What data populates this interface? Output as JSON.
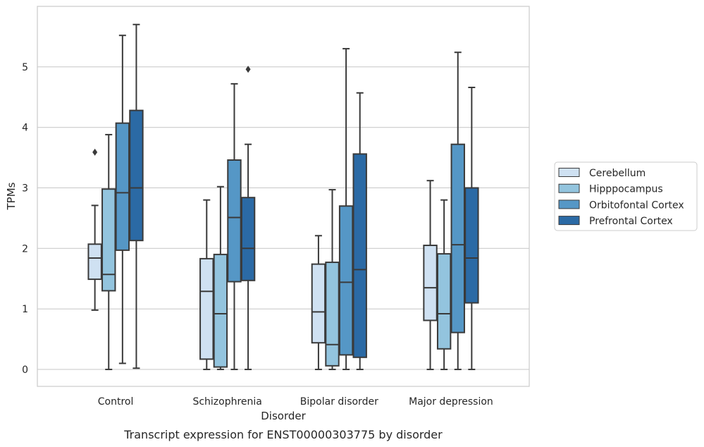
{
  "chart_data": {
    "type": "box",
    "title": "",
    "caption": "Transcript expression for ENST00000303775 by disorder",
    "xlabel": "Disorder",
    "ylabel": "TPMs",
    "ylim": [
      -0.28,
      6.0
    ],
    "yticks": [
      0,
      1,
      2,
      3,
      4,
      5
    ],
    "grid": "horizontal",
    "legend_position": "right",
    "categories": [
      "Control",
      "Schizophrenia",
      "Bipolar disorder",
      "Major depression"
    ],
    "series": [
      {
        "name": "Cerebellum",
        "color": "#cfe1f2",
        "boxes": [
          {
            "whisker_low": 0.98,
            "q1": 1.49,
            "median": 1.84,
            "q3": 2.07,
            "whisker_high": 2.71,
            "outliers": [
              3.59
            ]
          },
          {
            "whisker_low": 0.0,
            "q1": 0.17,
            "median": 1.29,
            "q3": 1.83,
            "whisker_high": 2.8,
            "outliers": []
          },
          {
            "whisker_low": 0.0,
            "q1": 0.44,
            "median": 0.95,
            "q3": 1.74,
            "whisker_high": 2.21,
            "outliers": []
          },
          {
            "whisker_low": 0.0,
            "q1": 0.81,
            "median": 1.35,
            "q3": 2.05,
            "whisker_high": 3.12,
            "outliers": []
          }
        ]
      },
      {
        "name": "Hipppocampus",
        "color": "#93c4de",
        "boxes": [
          {
            "whisker_low": 0.0,
            "q1": 1.3,
            "median": 1.57,
            "q3": 2.98,
            "whisker_high": 3.88,
            "outliers": []
          },
          {
            "whisker_low": 0.0,
            "q1": 0.04,
            "median": 0.92,
            "q3": 1.9,
            "whisker_high": 3.02,
            "outliers": []
          },
          {
            "whisker_low": 0.0,
            "q1": 0.06,
            "median": 0.41,
            "q3": 1.77,
            "whisker_high": 2.97,
            "outliers": []
          },
          {
            "whisker_low": 0.0,
            "q1": 0.34,
            "median": 0.92,
            "q3": 1.91,
            "whisker_high": 2.8,
            "outliers": []
          }
        ]
      },
      {
        "name": "Orbitofontal Cortex",
        "color": "#5597c6",
        "boxes": [
          {
            "whisker_low": 0.1,
            "q1": 1.97,
            "median": 2.92,
            "q3": 4.07,
            "whisker_high": 5.52,
            "outliers": []
          },
          {
            "whisker_low": 0.0,
            "q1": 1.45,
            "median": 2.51,
            "q3": 3.46,
            "whisker_high": 4.72,
            "outliers": []
          },
          {
            "whisker_low": 0.0,
            "q1": 0.24,
            "median": 1.44,
            "q3": 2.7,
            "whisker_high": 5.3,
            "outliers": []
          },
          {
            "whisker_low": 0.0,
            "q1": 0.61,
            "median": 2.06,
            "q3": 3.72,
            "whisker_high": 5.24,
            "outliers": []
          }
        ]
      },
      {
        "name": "Prefrontal Cortex",
        "color": "#2b6aa5",
        "boxes": [
          {
            "whisker_low": 0.02,
            "q1": 2.13,
            "median": 3.0,
            "q3": 4.28,
            "whisker_high": 5.7,
            "outliers": []
          },
          {
            "whisker_low": 0.0,
            "q1": 1.47,
            "median": 2.0,
            "q3": 2.84,
            "whisker_high": 3.72,
            "outliers": [
              4.96
            ]
          },
          {
            "whisker_low": 0.0,
            "q1": 0.2,
            "median": 1.65,
            "q3": 3.56,
            "whisker_high": 4.57,
            "outliers": []
          },
          {
            "whisker_low": 0.0,
            "q1": 1.1,
            "median": 1.84,
            "q3": 3.0,
            "whisker_high": 4.66,
            "outliers": []
          }
        ]
      }
    ]
  }
}
